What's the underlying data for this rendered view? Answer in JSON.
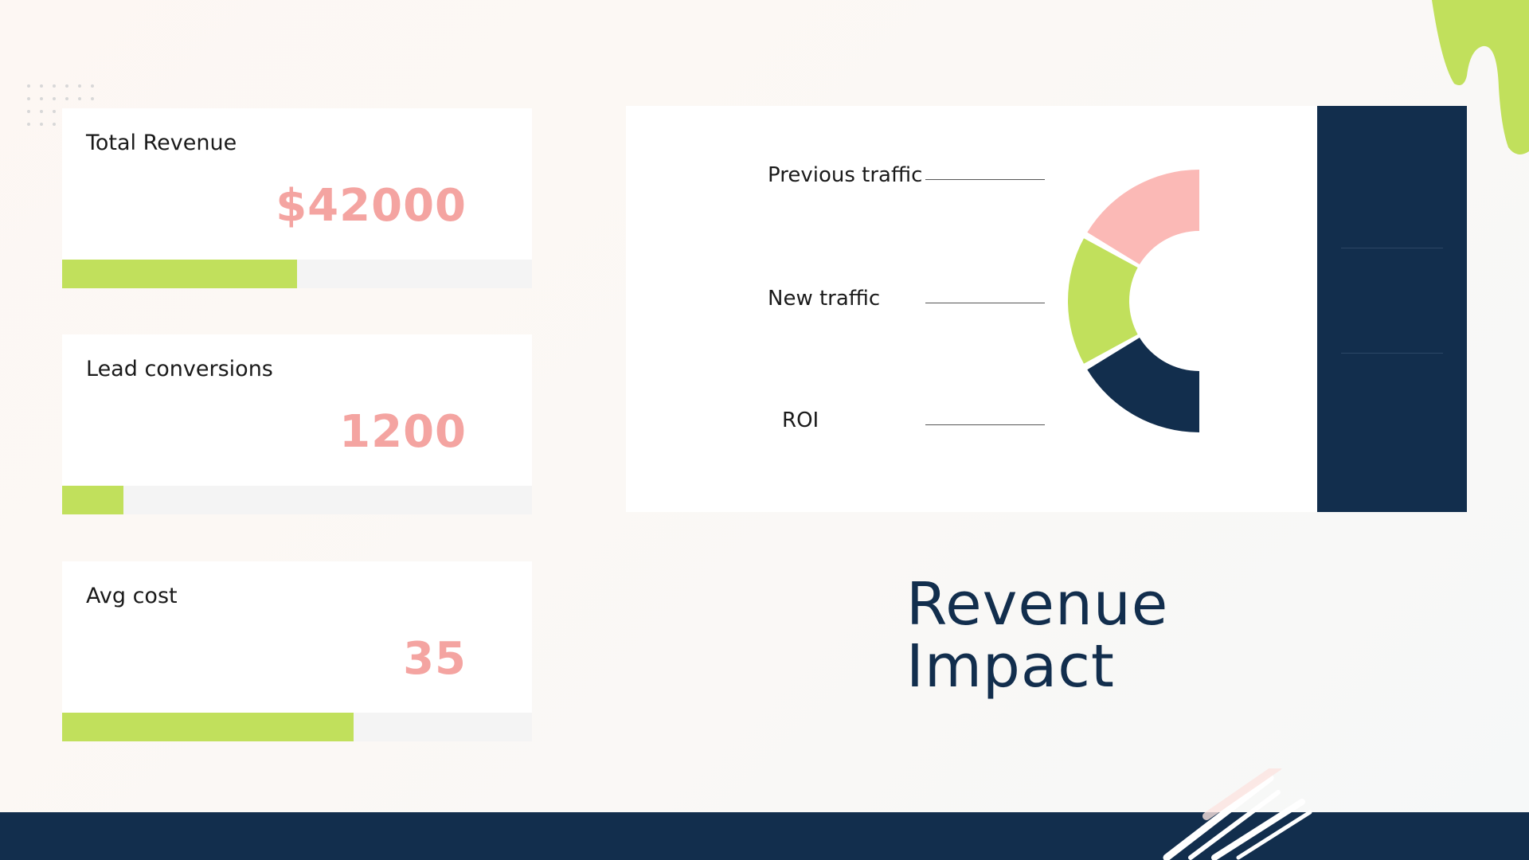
{
  "theme": {
    "navy": "#122e4d",
    "lime": "#c1e05c",
    "pink": "#fbb9b6",
    "value_pink": "#f4a4a1"
  },
  "kpis": [
    {
      "label": "Total Revenue",
      "value": "$42000",
      "progress_pct": 50
    },
    {
      "label": "Lead conversions",
      "value": "1200",
      "progress_pct": 13
    },
    {
      "label": "Avg cost",
      "value": "35",
      "progress_pct": 62
    }
  ],
  "chart_data": {
    "type": "pie",
    "style": "half-donut",
    "categories": [
      "Previous traffic",
      "New traffic",
      "ROI"
    ],
    "values": [
      33.3,
      33.3,
      33.3
    ],
    "colors": [
      "#fbb9b6",
      "#c1e05c",
      "#122e4d"
    ],
    "legend_placement": "left"
  },
  "title": {
    "line1": "Revenue",
    "line2": "Impact"
  },
  "decor": {
    "blob_icon": "paint-drip",
    "dots_icon": "dot-grid",
    "strokes_icon": "brush-strokes"
  }
}
